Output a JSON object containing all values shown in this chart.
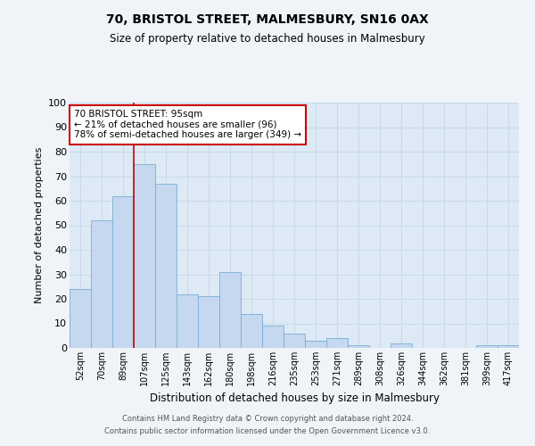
{
  "title": "70, BRISTOL STREET, MALMESBURY, SN16 0AX",
  "subtitle": "Size of property relative to detached houses in Malmesbury",
  "xlabel": "Distribution of detached houses by size in Malmesbury",
  "ylabel": "Number of detached properties",
  "categories": [
    "52sqm",
    "70sqm",
    "89sqm",
    "107sqm",
    "125sqm",
    "143sqm",
    "162sqm",
    "180sqm",
    "198sqm",
    "216sqm",
    "235sqm",
    "253sqm",
    "271sqm",
    "289sqm",
    "308sqm",
    "326sqm",
    "344sqm",
    "362sqm",
    "381sqm",
    "399sqm",
    "417sqm"
  ],
  "values": [
    24,
    52,
    62,
    75,
    67,
    22,
    21,
    31,
    14,
    9,
    6,
    3,
    4,
    1,
    0,
    2,
    0,
    0,
    0,
    1,
    1
  ],
  "bar_color": "#c5d8ef",
  "bar_edge_color": "#7aadd4",
  "vline_x": 2.5,
  "vline_color": "#cc0000",
  "annotation_text": "70 BRISTOL STREET: 95sqm\n← 21% of detached houses are smaller (96)\n78% of semi-detached houses are larger (349) →",
  "annotation_box_color": "#ffffff",
  "annotation_box_edge_color": "#cc0000",
  "ylim": [
    0,
    100
  ],
  "yticks": [
    0,
    10,
    20,
    30,
    40,
    50,
    60,
    70,
    80,
    90,
    100
  ],
  "grid_color": "#c8d8e8",
  "background_color": "#ddeaf6",
  "fig_facecolor": "#f0f4f8",
  "footer_line1": "Contains HM Land Registry data © Crown copyright and database right 2024.",
  "footer_line2": "Contains public sector information licensed under the Open Government Licence v3.0."
}
